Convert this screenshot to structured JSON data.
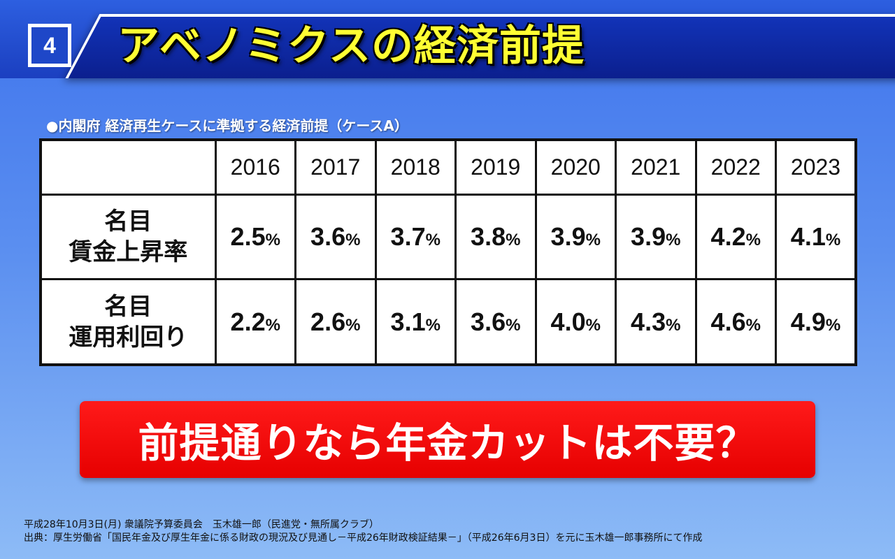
{
  "slide_number": "4",
  "title": "アベノミクスの経済前提",
  "caption": "●内閣府 経済再生ケースに準拠する経済前提（ケースA）",
  "table": {
    "years": [
      "2016",
      "2017",
      "2018",
      "2019",
      "2020",
      "2021",
      "2022",
      "2023"
    ],
    "rows": [
      {
        "label_line1": "名目",
        "label_line2": "賃金上昇率",
        "values": [
          "2.5",
          "3.6",
          "3.7",
          "3.8",
          "3.9",
          "3.9",
          "4.2",
          "4.1"
        ],
        "unit": "%"
      },
      {
        "label_line1": "名目",
        "label_line2": "運用利回り",
        "values": [
          "2.2",
          "2.6",
          "3.1",
          "3.6",
          "4.0",
          "4.3",
          "4.6",
          "4.9"
        ],
        "unit": "%"
      }
    ]
  },
  "callout": "前提通りなら年金カットは不要？",
  "footer": {
    "line1": "平成28年10月3日(月) 衆議院予算委員会　玉木雄一郎（民進党・無所属クラブ）",
    "line2": "出典：厚生労働省「国民年金及び厚生年金に係る財政の現況及び見通し－平成26年財政検証結果－」（平成26年6月3日）を元に玉木雄一郎事務所にて作成"
  },
  "colors": {
    "title_text": "#ffff33",
    "callout_bg": "#e60000",
    "banner_bg": "#0b1f8e"
  }
}
